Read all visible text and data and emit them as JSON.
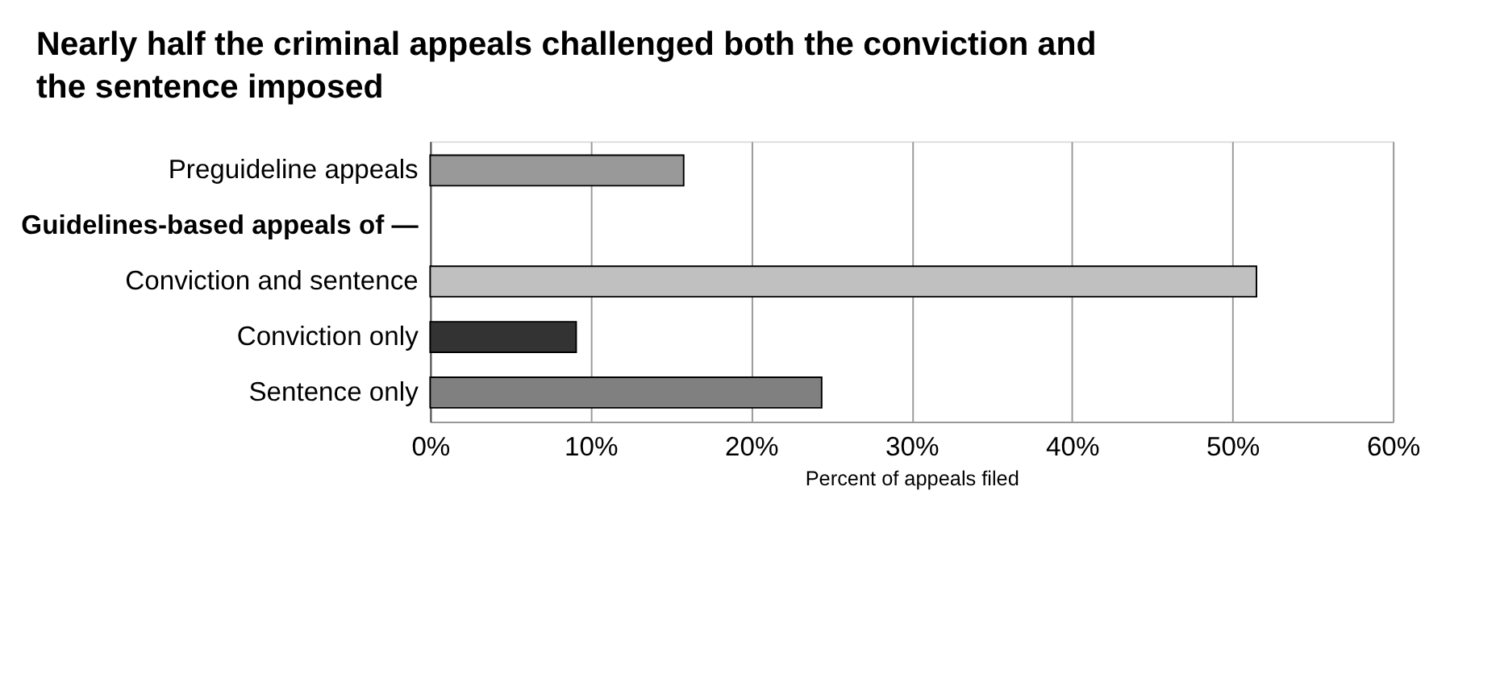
{
  "chart_data": {
    "type": "bar",
    "orientation": "horizontal",
    "title": "Nearly half the criminal appeals challenged both the conviction and the sentence imposed",
    "categories": [
      "Preguideline appeals",
      "Guidelines-based appeals of —",
      "Conviction and sentence",
      "Conviction only",
      "Sentence only"
    ],
    "values": [
      15.8,
      null,
      51.5,
      9.1,
      24.4
    ],
    "colors": [
      "#999999",
      null,
      "#c0c0c0",
      "#333333",
      "#808080"
    ],
    "xlabel": "Percent of appeals filed",
    "xlim": [
      0,
      60
    ],
    "xticks": [
      {
        "value": 0,
        "label": "0%"
      },
      {
        "value": 10,
        "label": "10%"
      },
      {
        "value": 20,
        "label": "20%"
      },
      {
        "value": 30,
        "label": "30%"
      },
      {
        "value": 40,
        "label": "40%"
      },
      {
        "value": 50,
        "label": "50%"
      },
      {
        "value": 60,
        "label": "60%"
      }
    ],
    "grid": "x"
  }
}
